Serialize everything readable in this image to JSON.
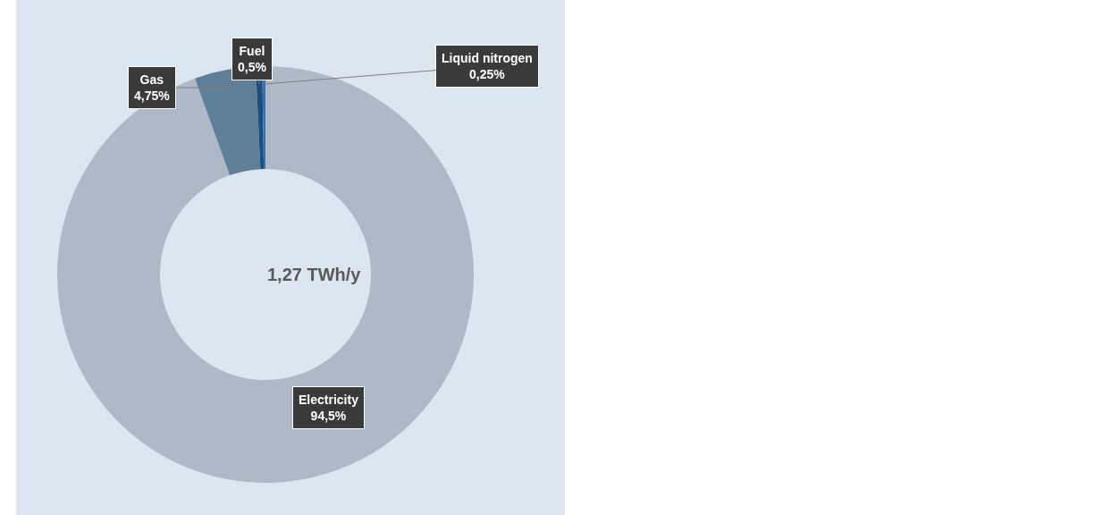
{
  "chart_data": {
    "type": "donut",
    "categories": [
      "Electricity",
      "Gas",
      "Fuel",
      "Liquid nitrogen"
    ],
    "values": [
      94.5,
      4.75,
      0.5,
      0.25
    ],
    "value_labels": [
      "94,5%",
      "4,75%",
      "0,5%",
      "0,25%"
    ],
    "colors": [
      "#adb9c6",
      "#5f7f99",
      "#1f4e79",
      "#2e75b6"
    ],
    "annotations": [
      "1,27 TWh/y"
    ],
    "legend": false
  }
}
